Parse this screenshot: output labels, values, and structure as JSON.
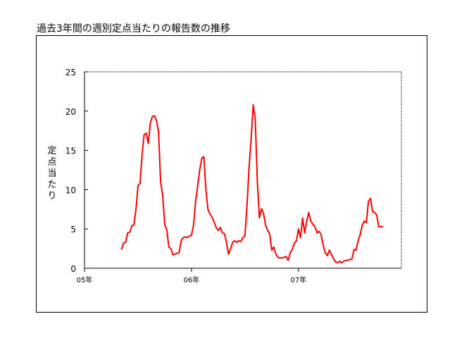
{
  "chart_data": {
    "type": "line",
    "title": "過去3年間の週別定点当たりの報告数の推移",
    "xlabel": "",
    "ylabel": "定点当たり",
    "ylim": [
      0,
      25
    ],
    "yticks": [
      0,
      5,
      10,
      15,
      20,
      25
    ],
    "xlim": [
      0,
      154
    ],
    "xticks": [
      {
        "week": 0,
        "label": "05年"
      },
      {
        "week": 52,
        "label": "06年"
      },
      {
        "week": 104,
        "label": "07年"
      }
    ],
    "grid": false,
    "series": [
      {
        "color": "#ff0000",
        "points": [
          [
            18,
            2.4
          ],
          [
            19,
            3.2
          ],
          [
            20,
            3.3
          ],
          [
            21,
            4.5
          ],
          [
            22,
            4.6
          ],
          [
            23,
            5.4
          ],
          [
            24,
            5.5
          ],
          [
            25,
            7.5
          ],
          [
            26,
            10.5
          ],
          [
            27,
            10.8
          ],
          [
            28,
            14.5
          ],
          [
            29,
            17.0
          ],
          [
            30,
            17.2
          ],
          [
            31,
            15.9
          ],
          [
            32,
            18.5
          ],
          [
            33,
            19.3
          ],
          [
            34,
            19.4
          ],
          [
            35,
            18.8
          ],
          [
            36,
            17.3
          ],
          [
            37,
            11.0
          ],
          [
            38,
            9.3
          ],
          [
            39,
            5.5
          ],
          [
            40,
            4.9
          ],
          [
            41,
            2.7
          ],
          [
            42,
            2.5
          ],
          [
            43,
            1.7
          ],
          [
            44,
            1.8
          ],
          [
            45,
            1.9
          ],
          [
            46,
            2.0
          ],
          [
            47,
            3.5
          ],
          [
            48,
            3.9
          ],
          [
            49,
            4.0
          ],
          [
            50,
            3.9
          ],
          [
            51,
            4.1
          ],
          [
            52,
            4.2
          ],
          [
            53,
            5.5
          ],
          [
            54,
            8.5
          ],
          [
            55,
            10.5
          ],
          [
            56,
            12.5
          ],
          [
            57,
            14.0
          ],
          [
            58,
            14.2
          ],
          [
            59,
            10.0
          ],
          [
            60,
            7.5
          ],
          [
            61,
            6.9
          ],
          [
            62,
            6.5
          ],
          [
            63,
            5.9
          ],
          [
            64,
            5.2
          ],
          [
            65,
            4.8
          ],
          [
            66,
            5.2
          ],
          [
            67,
            4.5
          ],
          [
            68,
            4.4
          ],
          [
            69,
            3.3
          ],
          [
            70,
            1.8
          ],
          [
            71,
            2.5
          ],
          [
            72,
            3.3
          ],
          [
            73,
            3.5
          ],
          [
            74,
            3.3
          ],
          [
            75,
            3.5
          ],
          [
            76,
            3.4
          ],
          [
            77,
            3.9
          ],
          [
            78,
            4.1
          ],
          [
            79,
            8.0
          ],
          [
            80,
            13.0
          ],
          [
            81,
            16.5
          ],
          [
            82,
            20.8
          ],
          [
            83,
            19.0
          ],
          [
            84,
            11.0
          ],
          [
            85,
            6.4
          ],
          [
            86,
            7.6
          ],
          [
            87,
            7.0
          ],
          [
            88,
            5.5
          ],
          [
            89,
            4.8
          ],
          [
            90,
            4.4
          ],
          [
            91,
            2.3
          ],
          [
            92,
            2.7
          ],
          [
            93,
            1.8
          ],
          [
            94,
            1.4
          ],
          [
            95,
            1.3
          ],
          [
            96,
            1.3
          ],
          [
            97,
            1.4
          ],
          [
            98,
            1.5
          ],
          [
            99,
            1.0
          ],
          [
            100,
            2.0
          ],
          [
            101,
            2.4
          ],
          [
            102,
            3.2
          ],
          [
            103,
            3.5
          ],
          [
            104,
            5.0
          ],
          [
            105,
            3.9
          ],
          [
            106,
            6.4
          ],
          [
            107,
            4.5
          ],
          [
            108,
            6.0
          ],
          [
            109,
            7.1
          ],
          [
            110,
            6.0
          ],
          [
            111,
            5.6
          ],
          [
            112,
            5.3
          ],
          [
            113,
            4.5
          ],
          [
            114,
            4.7
          ],
          [
            115,
            4.3
          ],
          [
            116,
            2.9
          ],
          [
            117,
            2.0
          ],
          [
            118,
            1.6
          ],
          [
            119,
            2.3
          ],
          [
            120,
            1.8
          ],
          [
            121,
            1.2
          ],
          [
            122,
            0.8
          ],
          [
            123,
            0.7
          ],
          [
            124,
            0.9
          ],
          [
            125,
            0.7
          ],
          [
            126,
            0.9
          ],
          [
            127,
            1.0
          ],
          [
            128,
            1.0
          ],
          [
            129,
            1.1
          ],
          [
            130,
            1.2
          ],
          [
            131,
            2.4
          ],
          [
            132,
            2.3
          ],
          [
            133,
            3.5
          ],
          [
            134,
            4.3
          ],
          [
            135,
            5.5
          ],
          [
            136,
            6.0
          ],
          [
            137,
            5.8
          ],
          [
            138,
            8.5
          ],
          [
            139,
            8.9
          ],
          [
            140,
            7.2
          ],
          [
            141,
            7.1
          ],
          [
            142,
            6.8
          ],
          [
            143,
            5.3
          ],
          [
            144,
            5.3
          ],
          [
            145,
            5.3
          ]
        ]
      }
    ]
  }
}
